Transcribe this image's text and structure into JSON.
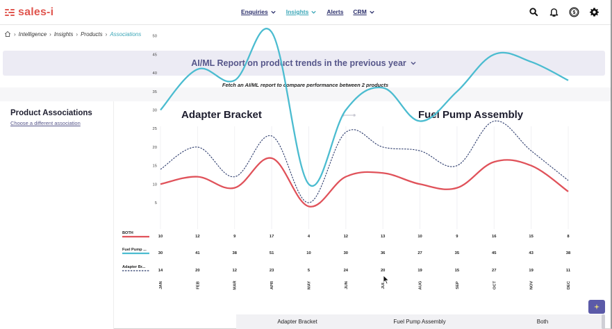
{
  "brand": {
    "name": "sales-i",
    "color": "#e0564f"
  },
  "nav": {
    "items": [
      {
        "label": "Enquiries",
        "dropdown": true,
        "active": false
      },
      {
        "label": "Insights",
        "dropdown": true,
        "active": true
      },
      {
        "label": "Alerts",
        "dropdown": false,
        "active": false
      },
      {
        "label": "CRM",
        "dropdown": true,
        "active": false
      }
    ],
    "icons": [
      "search-icon",
      "bell-icon",
      "dollar-coin-icon",
      "gear-icon"
    ]
  },
  "breadcrumb": {
    "home_icon": "home-icon",
    "items": [
      "Intelligence",
      "Insights",
      "Products",
      "Associations"
    ]
  },
  "report": {
    "title": "AI/ML Report on product trends in the previous year",
    "subtitle": "Fetch an AI/ML report to compare performance between 2 products"
  },
  "left_panel": {
    "heading": "Product Associations",
    "change_link": "Choose a different association"
  },
  "chart_data": {
    "type": "line",
    "products": [
      "Adapter Bracket",
      "Fuel Pump Assembly"
    ],
    "categories": [
      "JAN",
      "FEB",
      "MAR",
      "APR",
      "MAY",
      "JUN",
      "JUL",
      "AUG",
      "SEP",
      "OCT",
      "NOV",
      "DEC"
    ],
    "yticks": [
      5,
      10,
      15,
      20,
      25,
      30,
      35,
      40,
      45,
      50
    ],
    "ylim": [
      0,
      53
    ],
    "series": [
      {
        "name": "BOTH",
        "color": "#e0525a",
        "style": "solid",
        "values": [
          10,
          12,
          9,
          17,
          4,
          12,
          13,
          10,
          9,
          16,
          15,
          8
        ]
      },
      {
        "name": "Fuel Pump ...",
        "color": "#4bbcd0",
        "style": "solid",
        "values": [
          30,
          41,
          38,
          51,
          10,
          30,
          36,
          27,
          35,
          45,
          43,
          38
        ]
      },
      {
        "name": "Adapter Br...",
        "color": "#2b3a6b",
        "style": "dashed",
        "values": [
          14,
          20,
          12,
          23,
          5,
          24,
          20,
          19,
          15,
          27,
          19,
          11
        ]
      }
    ]
  },
  "table": {
    "headers": [
      "Adapter Bracket",
      "Fuel Pump Assembly",
      "Both"
    ]
  },
  "colors": {
    "accent": "#3aa6b7",
    "banner_bg": "#ecebf4",
    "banner_text": "#56568a",
    "fab": "#5b5aa8"
  }
}
